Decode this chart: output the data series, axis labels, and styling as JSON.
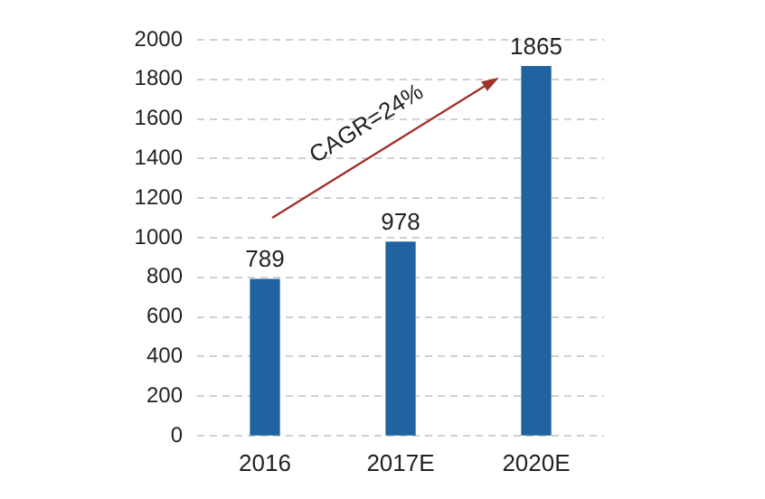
{
  "chart_data": {
    "type": "bar",
    "categories": [
      "2016",
      "2017E",
      "2020E"
    ],
    "values": [
      789,
      978,
      1865
    ],
    "color": "#1f64a0",
    "ylim": [
      0,
      2000
    ],
    "yticks": [
      0,
      200,
      400,
      600,
      800,
      1000,
      1200,
      1400,
      1600,
      1800,
      2000
    ],
    "grid": "y",
    "data_labels": true,
    "annotations": [
      "CAGR=24%"
    ]
  }
}
